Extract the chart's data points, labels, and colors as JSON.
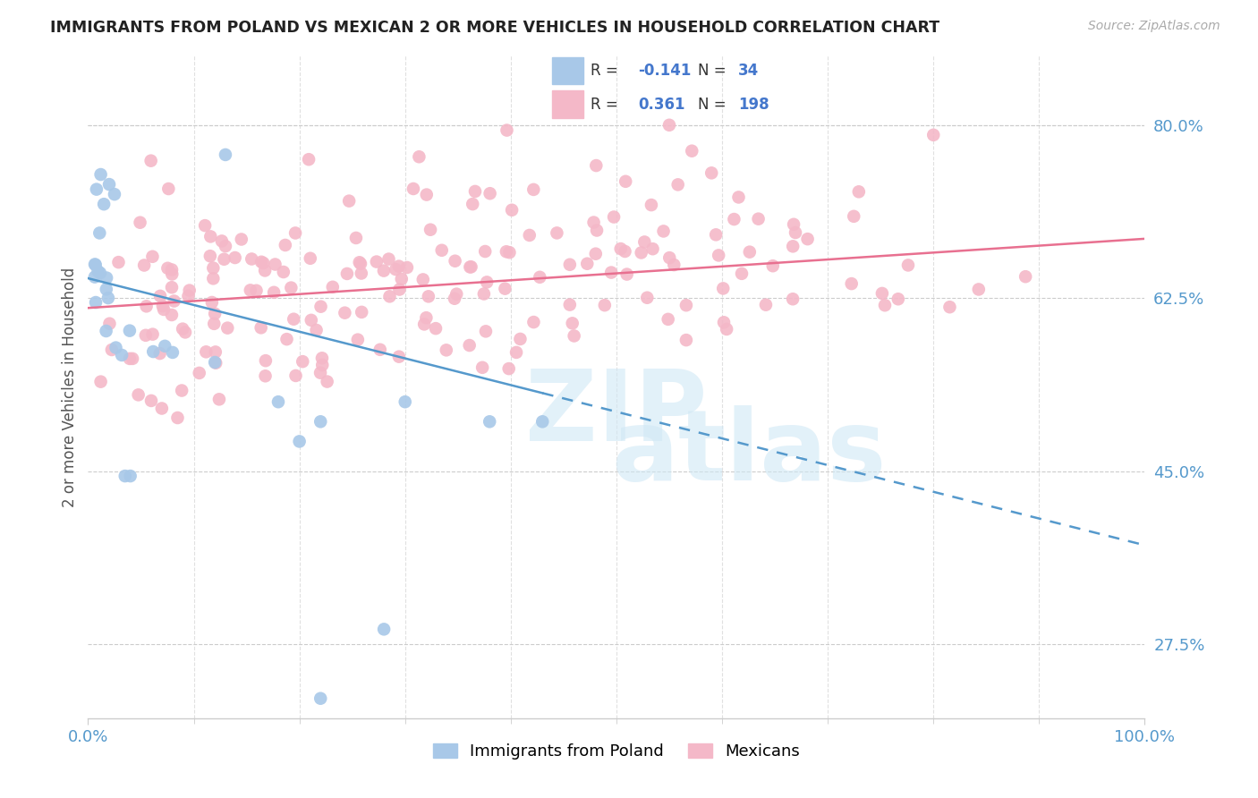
{
  "title": "IMMIGRANTS FROM POLAND VS MEXICAN 2 OR MORE VEHICLES IN HOUSEHOLD CORRELATION CHART",
  "source": "Source: ZipAtlas.com",
  "ylabel": "2 or more Vehicles in Household",
  "ytick_vals": [
    0.275,
    0.45,
    0.625,
    0.8
  ],
  "ytick_labels": [
    "27.5%",
    "45.0%",
    "62.5%",
    "80.0%"
  ],
  "blue_color": "#a8c8e8",
  "pink_color": "#f4b8c8",
  "blue_line_color": "#5599cc",
  "pink_line_color": "#e87090",
  "grid_color": "#cccccc",
  "title_color": "#222222",
  "source_color": "#aaaaaa",
  "tick_color": "#5599cc",
  "ylabel_color": "#555555",
  "legend_text_color": "#333333",
  "legend_val_color": "#4477cc",
  "xlim": [
    0.0,
    1.0
  ],
  "ylim": [
    0.2,
    0.87
  ],
  "blue_R": "-0.141",
  "blue_N": "34",
  "pink_R": "0.361",
  "pink_N": "198"
}
